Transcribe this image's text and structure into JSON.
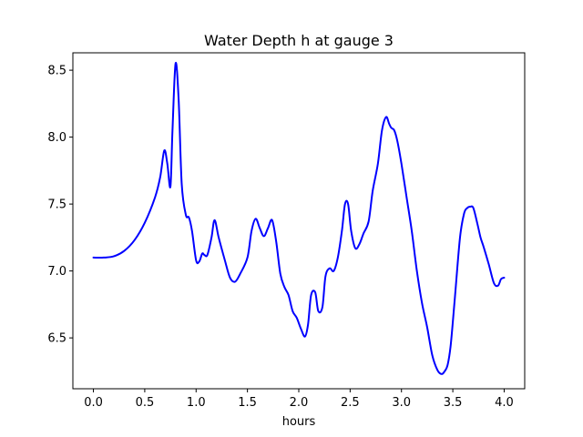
{
  "chart_data": {
    "type": "line",
    "title": "Water Depth h at gauge 3",
    "xlabel": "hours",
    "ylabel": "",
    "xlim": [
      -0.2,
      4.2
    ],
    "ylim": [
      6.12,
      8.63
    ],
    "xticks": [
      0.0,
      0.5,
      1.0,
      1.5,
      2.0,
      2.5,
      3.0,
      3.5,
      4.0
    ],
    "xtick_labels": [
      "0.0",
      "0.5",
      "1.0",
      "1.5",
      "2.0",
      "2.5",
      "3.0",
      "3.5",
      "4.0"
    ],
    "yticks": [
      6.5,
      7.0,
      7.5,
      8.0,
      8.5
    ],
    "ytick_labels": [
      "6.5",
      "7.0",
      "7.5",
      "8.0",
      "8.5"
    ],
    "grid": false,
    "series": [
      {
        "color": "#0000ff",
        "x": [
          0.0,
          0.1,
          0.2,
          0.3,
          0.4,
          0.5,
          0.6,
          0.65,
          0.69,
          0.72,
          0.75,
          0.77,
          0.8,
          0.83,
          0.86,
          0.9,
          0.93,
          0.96,
          1.0,
          1.03,
          1.06,
          1.08,
          1.11,
          1.15,
          1.18,
          1.22,
          1.28,
          1.33,
          1.38,
          1.43,
          1.5,
          1.54,
          1.58,
          1.62,
          1.66,
          1.7,
          1.74,
          1.78,
          1.82,
          1.86,
          1.9,
          1.94,
          1.98,
          2.02,
          2.06,
          2.09,
          2.12,
          2.16,
          2.19,
          2.23,
          2.26,
          2.3,
          2.34,
          2.38,
          2.42,
          2.45,
          2.48,
          2.51,
          2.55,
          2.59,
          2.63,
          2.68,
          2.72,
          2.77,
          2.81,
          2.85,
          2.88,
          2.9,
          2.93,
          2.96,
          3.0,
          3.05,
          3.1,
          3.15,
          3.2,
          3.25,
          3.3,
          3.35,
          3.39,
          3.42,
          3.45,
          3.48,
          3.52,
          3.57,
          3.61,
          3.64,
          3.67,
          3.7,
          3.74,
          3.77,
          3.8,
          3.85,
          3.9,
          3.94,
          3.97,
          4.0
        ],
        "y": [
          7.1,
          7.1,
          7.11,
          7.15,
          7.23,
          7.36,
          7.55,
          7.7,
          7.9,
          7.8,
          7.63,
          8.05,
          8.55,
          8.28,
          7.65,
          7.42,
          7.4,
          7.3,
          7.08,
          7.07,
          7.13,
          7.12,
          7.12,
          7.25,
          7.38,
          7.25,
          7.08,
          6.95,
          6.92,
          6.98,
          7.1,
          7.3,
          7.39,
          7.32,
          7.26,
          7.32,
          7.38,
          7.22,
          6.98,
          6.88,
          6.82,
          6.7,
          6.65,
          6.57,
          6.51,
          6.6,
          6.82,
          6.84,
          6.7,
          6.73,
          6.96,
          7.02,
          7.0,
          7.1,
          7.3,
          7.5,
          7.5,
          7.3,
          7.17,
          7.2,
          7.28,
          7.37,
          7.6,
          7.8,
          8.05,
          8.15,
          8.1,
          8.07,
          8.05,
          7.97,
          7.8,
          7.55,
          7.3,
          7.0,
          6.76,
          6.58,
          6.37,
          6.26,
          6.23,
          6.25,
          6.3,
          6.45,
          6.8,
          7.25,
          7.43,
          7.47,
          7.48,
          7.47,
          7.35,
          7.25,
          7.18,
          7.05,
          6.91,
          6.89,
          6.94,
          6.95
        ]
      }
    ]
  }
}
